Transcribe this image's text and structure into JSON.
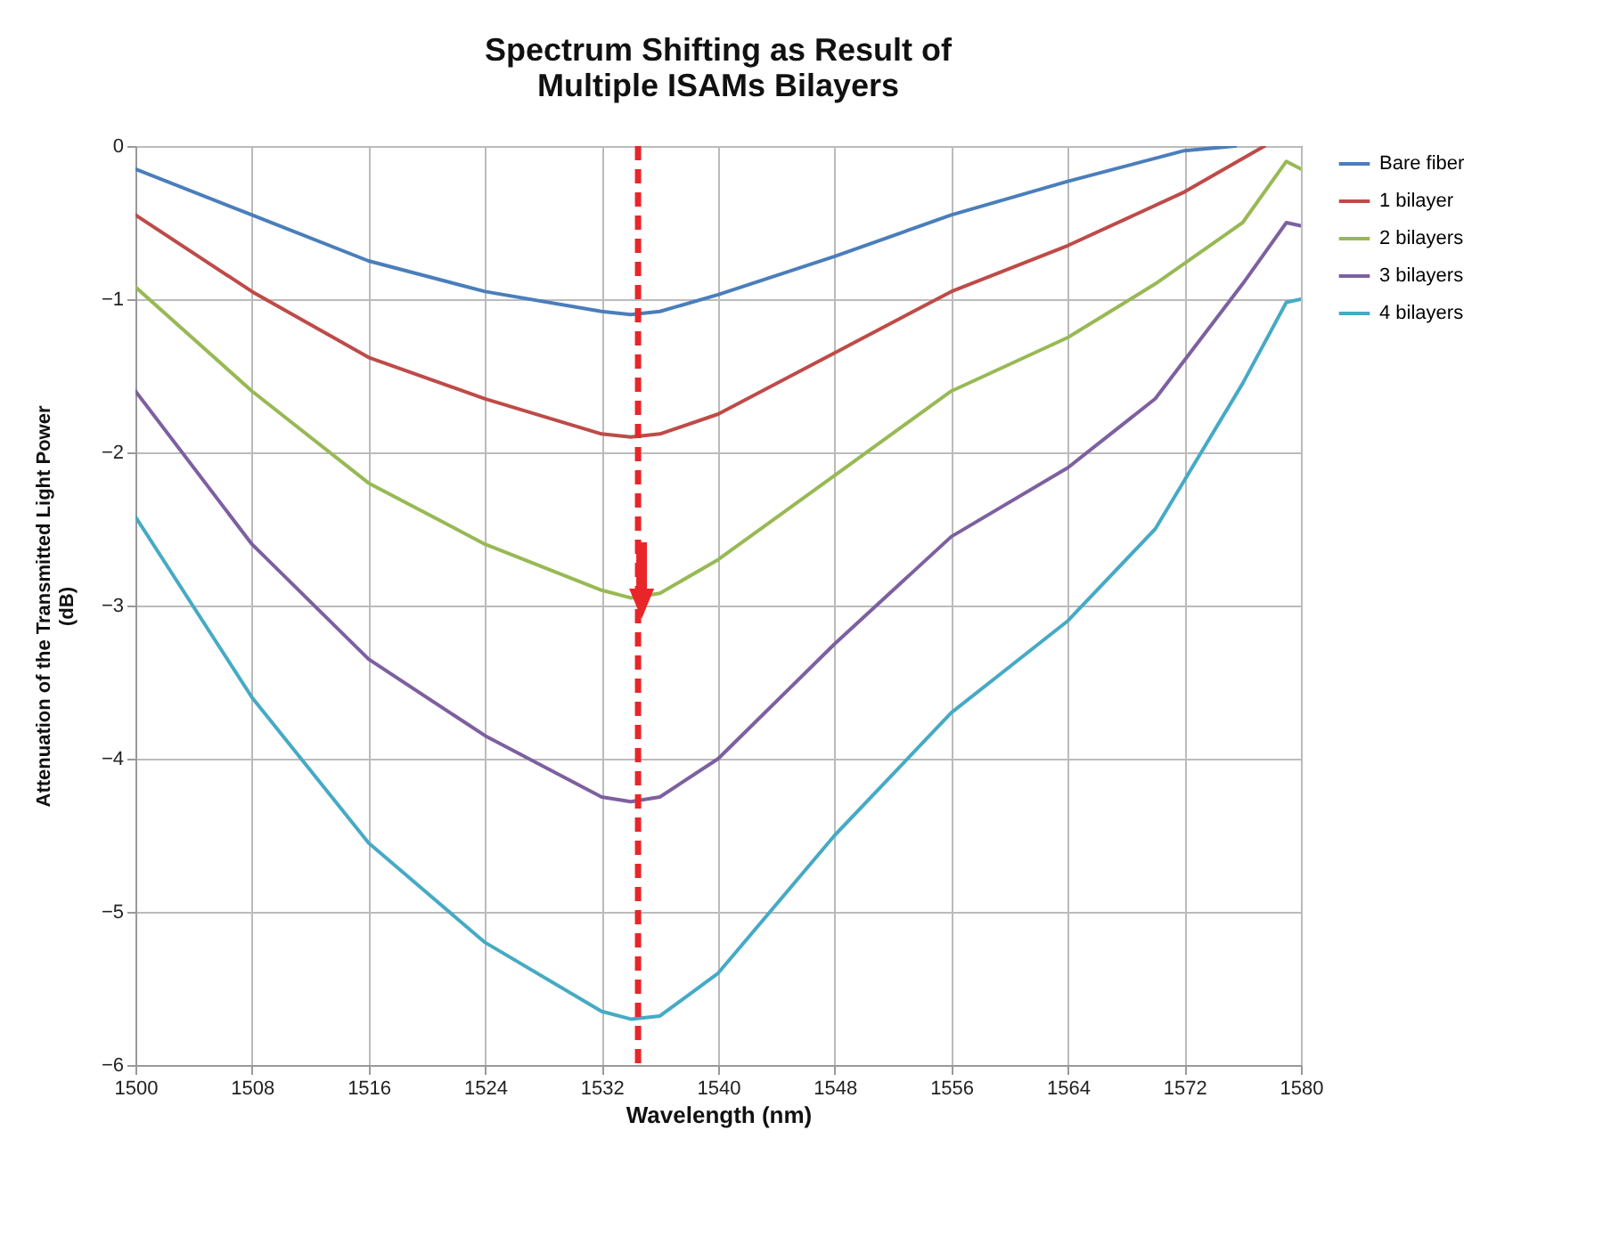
{
  "chart_data": {
    "type": "line",
    "title": [
      "Spectrum Shifting as Result of",
      "Multiple ISAMs Bilayers"
    ],
    "xlabel": "Wavelength (nm)",
    "ylabel": [
      "Attenuation of the Transmitted Light Power",
      "(dB)"
    ],
    "xlim": [
      1500,
      1580
    ],
    "xticks": [
      1500,
      1508,
      1516,
      1524,
      1532,
      1540,
      1548,
      1556,
      1564,
      1572,
      1580
    ],
    "ylim": [
      -6,
      0
    ],
    "yticks": [
      -6,
      -5,
      -4,
      -3,
      -2,
      -1,
      0
    ],
    "grid": true,
    "legend": "right",
    "marker": "none",
    "line_style": "solid",
    "ref_lines": [
      {
        "axis": "x",
        "value": 1534.5,
        "color": "#e8262a",
        "line_style": "dashed"
      }
    ],
    "series": [
      {
        "name": "Bare fiber",
        "color": "#4a7ebb",
        "x": [
          1500,
          1508,
          1516,
          1524,
          1532,
          1534,
          1536,
          1540,
          1548,
          1556,
          1564,
          1572,
          1575.5
        ],
        "values": [
          -0.15,
          -0.45,
          -0.75,
          -0.95,
          -1.08,
          -1.1,
          -1.08,
          -0.97,
          -0.72,
          -0.45,
          -0.23,
          -0.03,
          0
        ]
      },
      {
        "name": "1 bilayer",
        "color": "#be4b48",
        "x": [
          1500,
          1508,
          1516,
          1524,
          1532,
          1534,
          1536,
          1540,
          1548,
          1556,
          1564,
          1572,
          1577.5
        ],
        "values": [
          -0.45,
          -0.95,
          -1.38,
          -1.65,
          -1.88,
          -1.9,
          -1.88,
          -1.75,
          -1.35,
          -0.95,
          -0.65,
          -0.3,
          0
        ]
      },
      {
        "name": "2 bilayers",
        "color": "#98b954",
        "x": [
          1500,
          1508,
          1516,
          1524,
          1532,
          1534,
          1536,
          1540,
          1548,
          1556,
          1564,
          1570,
          1576,
          1579,
          1580
        ],
        "values": [
          -0.92,
          -1.6,
          -2.2,
          -2.6,
          -2.9,
          -2.95,
          -2.92,
          -2.7,
          -2.15,
          -1.6,
          -1.25,
          -0.9,
          -0.5,
          -0.1,
          -0.15
        ]
      },
      {
        "name": "3 bilayers",
        "color": "#7d60a0",
        "x": [
          1500,
          1508,
          1516,
          1524,
          1532,
          1534,
          1536,
          1540,
          1548,
          1556,
          1564,
          1570,
          1576,
          1579,
          1580
        ],
        "values": [
          -1.6,
          -2.6,
          -3.35,
          -3.85,
          -4.25,
          -4.28,
          -4.25,
          -4.0,
          -3.25,
          -2.55,
          -2.1,
          -1.65,
          -0.9,
          -0.5,
          -0.52
        ]
      },
      {
        "name": "4 bilayers",
        "color": "#46aac5",
        "x": [
          1500,
          1508,
          1516,
          1524,
          1532,
          1534,
          1536,
          1540,
          1548,
          1556,
          1564,
          1570,
          1576,
          1579,
          1580
        ],
        "values": [
          -2.42,
          -3.6,
          -4.55,
          -5.2,
          -5.65,
          -5.7,
          -5.68,
          -5.4,
          -4.5,
          -3.7,
          -3.1,
          -2.5,
          -1.55,
          -1.02,
          -1.0
        ]
      }
    ]
  }
}
